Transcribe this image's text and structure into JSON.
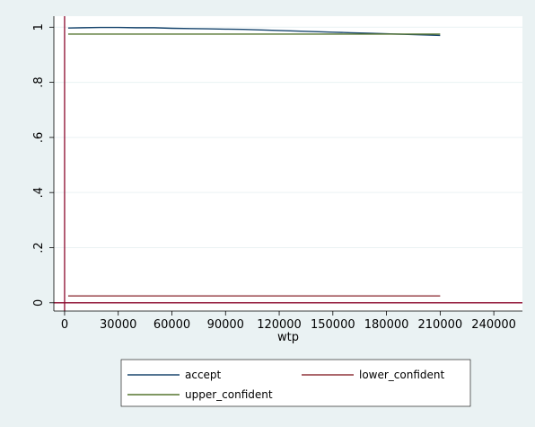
{
  "colors": {
    "background": "#eaf2f3",
    "plot_background": "#ffffff",
    "grid": "#eaf2f3",
    "axis": "#000000",
    "marker_line": "#8b0a2e",
    "accept": "#1a476f",
    "lower_confident": "#90353b",
    "upper_confident": "#55752f"
  },
  "chart_data": {
    "type": "line",
    "xlabel": "wtp",
    "ylabel": "",
    "xlim": [
      -6000,
      256000
    ],
    "ylim": [
      -0.03,
      1.04
    ],
    "x_ticks": [
      0,
      30000,
      60000,
      90000,
      120000,
      150000,
      180000,
      210000,
      240000
    ],
    "x_tick_labels": [
      "0",
      "30000",
      "60000",
      "90000",
      "120000",
      "150000",
      "180000",
      "210000",
      "240000"
    ],
    "y_ticks": [
      0,
      0.2,
      0.4,
      0.6,
      0.8,
      1
    ],
    "y_tick_labels": [
      "0",
      ".2",
      ".4",
      ".6",
      ".8",
      "1"
    ],
    "grid": true,
    "reference_lines": {
      "x": 0,
      "y": 0
    },
    "legend_position": "bottom",
    "series": [
      {
        "name": "accept",
        "color": "#1a476f",
        "x": [
          2000,
          10000,
          20000,
          30000,
          40000,
          50000,
          60000,
          70000,
          80000,
          90000,
          100000,
          110000,
          120000,
          130000,
          140000,
          150000,
          160000,
          170000,
          180000,
          190000,
          200000,
          210000
        ],
        "y": [
          0.997,
          0.998,
          0.999,
          0.999,
          0.998,
          0.998,
          0.996,
          0.995,
          0.994,
          0.993,
          0.992,
          0.99,
          0.988,
          0.986,
          0.984,
          0.982,
          0.98,
          0.978,
          0.976,
          0.974,
          0.972,
          0.97
        ]
      },
      {
        "name": "lower_confident",
        "color": "#90353b",
        "x": [
          2000,
          210000
        ],
        "y": [
          0.025,
          0.025
        ]
      },
      {
        "name": "upper_confident",
        "color": "#55752f",
        "x": [
          2000,
          210000
        ],
        "y": [
          0.975,
          0.975
        ]
      }
    ]
  }
}
